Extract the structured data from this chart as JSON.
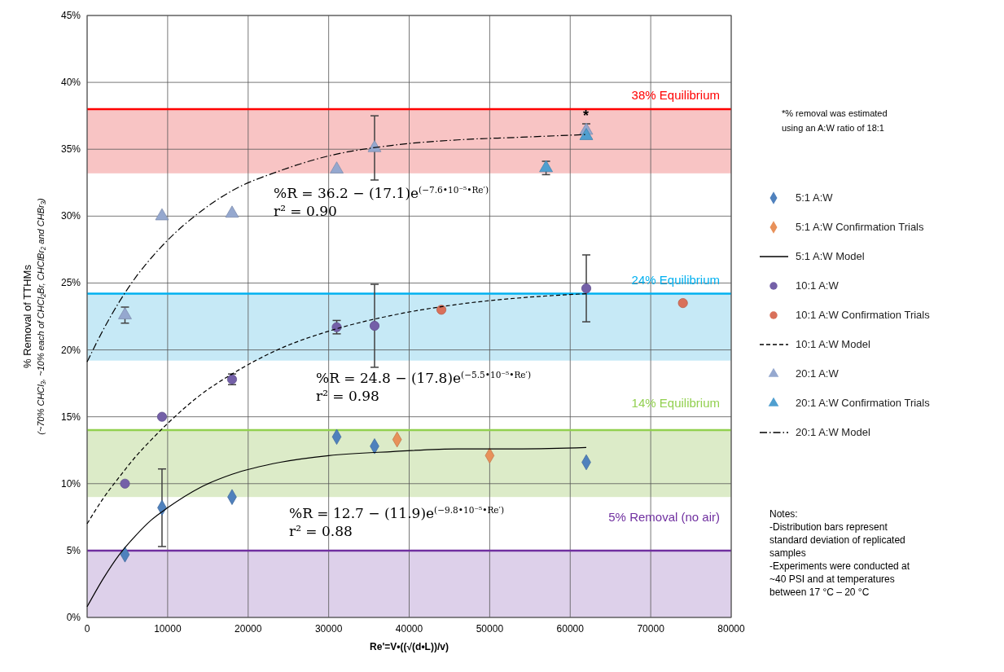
{
  "chart_data": {
    "type": "scatter",
    "xlabel": "Re'=V•((√(d•L))/v)",
    "ylabel": "% Removal of TTHMs\n(~70% CHCl₃, ~10% each of CHCl₂Br, CHClBr₂ and CHBr₃)",
    "xlim": [
      0,
      80000
    ],
    "xticks": [
      0,
      10000,
      20000,
      30000,
      40000,
      50000,
      60000,
      70000,
      80000
    ],
    "ylim": [
      0,
      45
    ],
    "yticks": [
      {
        "value": 0,
        "label": "0%"
      },
      {
        "value": 5,
        "label": "5%"
      },
      {
        "value": 10,
        "label": "10%"
      },
      {
        "value": 15,
        "label": "15%"
      },
      {
        "value": 20,
        "label": "20%"
      },
      {
        "value": 25,
        "label": "25%"
      },
      {
        "value": 30,
        "label": "30%"
      },
      {
        "value": 35,
        "label": "35%"
      },
      {
        "value": 40,
        "label": "40%"
      },
      {
        "value": 45,
        "label": "45%"
      }
    ],
    "grid": true,
    "legend": "right",
    "bands": [
      {
        "axis": "y",
        "from": 33.2,
        "to": 38,
        "color": "#f8c4c4"
      },
      {
        "axis": "y",
        "from": 19.2,
        "to": 24.2,
        "color": "#c6e9f6"
      },
      {
        "axis": "y",
        "from": 9,
        "to": 14,
        "color": "#dcebc8"
      },
      {
        "axis": "y",
        "from": 0,
        "to": 5,
        "color": "#ddd0ea"
      }
    ],
    "ref_lines": [
      {
        "axis": "y",
        "value": 38,
        "label": "38% Equilibrium",
        "color": "#ff0000"
      },
      {
        "axis": "y",
        "value": 24.2,
        "label": "24% Equilibrium",
        "color": "#00b0f0"
      },
      {
        "axis": "y",
        "value": 14,
        "label": "14% Equilibrium",
        "color": "#92d050"
      },
      {
        "axis": "y",
        "value": 5,
        "label": "5% Removal (no air)",
        "color": "#7030a0"
      }
    ],
    "series": [
      {
        "name": "5:1 A:W",
        "marker": "diamond",
        "color": "#4f81bd",
        "x": [
          4700,
          9300,
          18000,
          31000,
          35700,
          62000
        ],
        "values": [
          4.7,
          8.2,
          9.0,
          13.5,
          12.8,
          11.6
        ],
        "errors": [
          null,
          2.9,
          null,
          null,
          null,
          null
        ]
      },
      {
        "name": "5:1 A:W Confirmation Trials",
        "marker": "diamond",
        "color": "#e8915a",
        "x": [
          38500,
          50000
        ],
        "values": [
          13.3,
          12.1
        ]
      },
      {
        "name": "5:1 A:W Model",
        "type": "line",
        "line_style": "solid",
        "color": "#000000",
        "x": [
          0,
          2000,
          4000,
          6000,
          8000,
          10000,
          14000,
          18000,
          24000,
          30000,
          38000,
          46000,
          54000,
          62000
        ],
        "values": [
          0.8,
          2.9,
          4.7,
          6.1,
          7.3,
          8.2,
          9.7,
          10.7,
          11.6,
          12.1,
          12.4,
          12.6,
          12.6,
          12.7
        ]
      },
      {
        "name": "10:1 A:W",
        "marker": "circle",
        "color": "#7460a8",
        "x": [
          4700,
          9300,
          18000,
          31000,
          35700,
          62000
        ],
        "values": [
          10.0,
          15.0,
          17.8,
          21.7,
          21.8,
          24.6
        ],
        "errors": [
          null,
          null,
          0.4,
          0.5,
          3.1,
          2.5
        ]
      },
      {
        "name": "10:1 A:W Confirmation Trials",
        "marker": "circle",
        "color": "#d9705a",
        "x": [
          44000,
          74000
        ],
        "values": [
          23.0,
          23.5
        ]
      },
      {
        "name": "10:1 A:W Model",
        "type": "line",
        "line_style": "dashed",
        "color": "#000000",
        "x": [
          0,
          2000,
          4000,
          6000,
          8000,
          10000,
          14000,
          18000,
          24000,
          30000,
          38000,
          46000,
          54000,
          62000
        ],
        "values": [
          7.0,
          8.9,
          10.5,
          12.0,
          13.3,
          14.5,
          16.6,
          18.2,
          20.1,
          21.4,
          22.6,
          23.4,
          23.9,
          24.2
        ]
      },
      {
        "name": "20:1 A:W",
        "marker": "triangle",
        "color": "#95a8cf",
        "x": [
          4700,
          9300,
          18000,
          31000,
          35700,
          62000
        ],
        "values": [
          22.6,
          30.0,
          30.2,
          33.5,
          35.1,
          36.4
        ],
        "errors": [
          0.6,
          null,
          null,
          null,
          2.4,
          0.5
        ]
      },
      {
        "name": "20:1 A:W Confirmation Trials",
        "marker": "triangle",
        "color": "#4f9fd0",
        "x": [
          57000,
          62000
        ],
        "values": [
          33.6,
          36.0
        ],
        "errors": [
          0.5,
          null
        ]
      },
      {
        "name": "20:1 A:W Model",
        "type": "line",
        "line_style": "dashdot",
        "color": "#000000",
        "x": [
          0,
          2000,
          4000,
          6000,
          8000,
          10000,
          14000,
          18000,
          24000,
          30000,
          38000,
          46000,
          54000,
          62000
        ],
        "values": [
          19.1,
          21.5,
          23.6,
          25.4,
          26.9,
          28.2,
          30.3,
          31.9,
          33.4,
          34.5,
          35.3,
          35.7,
          35.9,
          36.1
        ]
      }
    ],
    "annotations": [
      "%R = 36.2 − (17.1)e$^{(−7.6•10⁻⁵•Re′)}$\nr² = 0.90",
      "%R = 24.8 − (17.8)e$^{(−5.5•10⁻⁵•Re′)}$\nr² = 0.98",
      "%R = 12.7 − (11.9)e$^{(−9.8•10⁻⁵•Re′)}$\nr² = 0.88",
      "*",
      "*% removal was estimated\nusing an A:W ratio of 18:1",
      "Notes:\n\n-Distribution bars represent\nstandard deviation of replicated\nsamples\n\n-Experiments were conducted at\n~40 PSI and at temperatures\nbetween 17 °C – 20 °C"
    ]
  }
}
